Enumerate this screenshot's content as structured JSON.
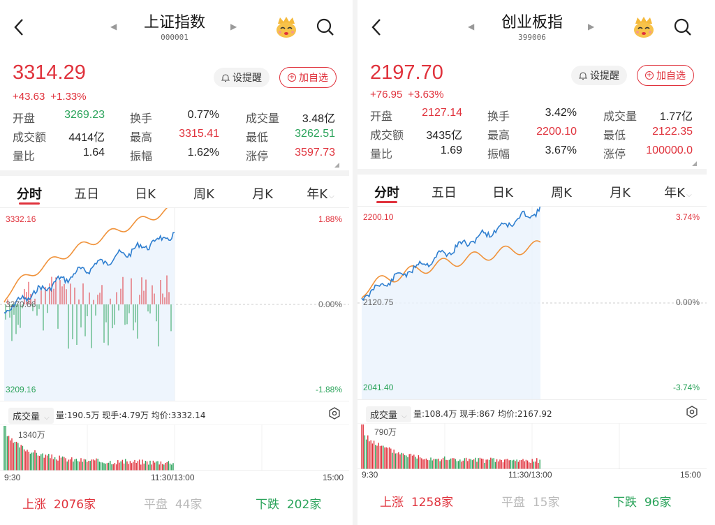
{
  "panels": [
    {
      "title": "上证指数",
      "code": "000001",
      "price": "3314.29",
      "change": "+43.63",
      "change_pct": "+1.33%",
      "remind_label": "设提醒",
      "fav_label": "加自选",
      "stats": {
        "open_label": "开盘",
        "open": "3269.23",
        "turnover_label": "换手",
        "turnover": "0.77%",
        "volume_label": "成交量",
        "volume": "3.48亿",
        "amount_label": "成交额",
        "amount": "4414亿",
        "high_label": "最高",
        "high": "3315.41",
        "low_label": "最低",
        "low": "3262.51",
        "ratio_label": "量比",
        "ratio": "1.64",
        "amplitude_label": "振幅",
        "amplitude": "1.62%",
        "limit_label": "涨停",
        "limit": "3597.73"
      },
      "chart": {
        "top": "3332.16",
        "mid": "3270.66",
        "bottom": "3209.16",
        "top_pct": "1.88%",
        "mid_pct": "0.00%",
        "bottom_pct": "-1.88%"
      },
      "volume_bar": {
        "selector": "成交量",
        "info": "量:190.5万 现手:4.79万 均价:3332.14",
        "max": "1340万"
      },
      "times": [
        "9:30",
        "11:30/13:00",
        "15:00"
      ],
      "breadth": {
        "up_label": "上涨",
        "up": "2076家",
        "flat_label": "平盘",
        "flat": "44家",
        "down_label": "下跌",
        "down": "202家"
      }
    },
    {
      "title": "创业板指",
      "code": "399006",
      "price": "2197.70",
      "change": "+76.95",
      "change_pct": "+3.63%",
      "remind_label": "设提醒",
      "fav_label": "加自选",
      "stats": {
        "open_label": "开盘",
        "open": "2127.14",
        "turnover_label": "换手",
        "turnover": "3.42%",
        "volume_label": "成交量",
        "volume": "1.77亿",
        "amount_label": "成交额",
        "amount": "3435亿",
        "high_label": "最高",
        "high": "2200.10",
        "low_label": "最低",
        "low": "2122.35",
        "ratio_label": "量比",
        "ratio": "1.69",
        "amplitude_label": "振幅",
        "amplitude": "3.67%",
        "limit_label": "涨停",
        "limit": "100000.0"
      },
      "chart": {
        "top": "2200.10",
        "mid": "2120.75",
        "bottom": "2041.40",
        "top_pct": "3.74%",
        "mid_pct": "0.00%",
        "bottom_pct": "-3.74%"
      },
      "volume_bar": {
        "selector": "成交量",
        "info": "量:108.4万 现手:867 均价:2167.92",
        "max": "790万"
      },
      "times": [
        "9:30",
        "11:30/13:00",
        "15:00"
      ],
      "breadth": {
        "up_label": "上涨",
        "up": "1258家",
        "flat_label": "平盘",
        "flat": "15家",
        "down_label": "下跌",
        "down": "96家"
      }
    }
  ],
  "tabs": [
    "分时",
    "五日",
    "日K",
    "周K",
    "月K",
    "年K"
  ],
  "colors": {
    "up": "#e0323c",
    "down": "#2aa35a",
    "price_line": "#2f7fd0",
    "avg_line": "#f0923a"
  },
  "icons": [
    "back-arrow-icon",
    "nav-left-icon",
    "nav-right-icon",
    "mascot-icon",
    "search-icon",
    "bell-icon",
    "plus-circle-icon",
    "settings-icon",
    "chevron-down-icon"
  ]
}
